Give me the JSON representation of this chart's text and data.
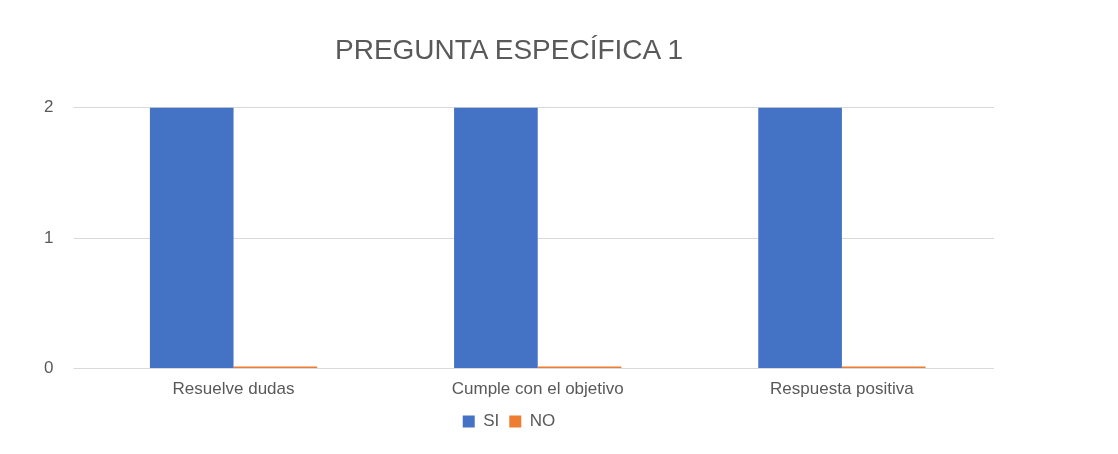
{
  "chart_data": {
    "type": "bar",
    "title": "PREGUNTA ESPECÍFICA 1",
    "categories": [
      "Resuelve dudas",
      "Cumple con el objetivo",
      "Respuesta positiva"
    ],
    "series": [
      {
        "name": "SI",
        "color": "#4472c4",
        "values": [
          2,
          2,
          2
        ]
      },
      {
        "name": "NO",
        "color": "#ed7d31",
        "values": [
          0,
          0,
          0
        ]
      }
    ],
    "ylim": [
      0,
      2
    ],
    "yticks": [
      0,
      1,
      2
    ],
    "grid": "y",
    "legend": "bottom"
  }
}
